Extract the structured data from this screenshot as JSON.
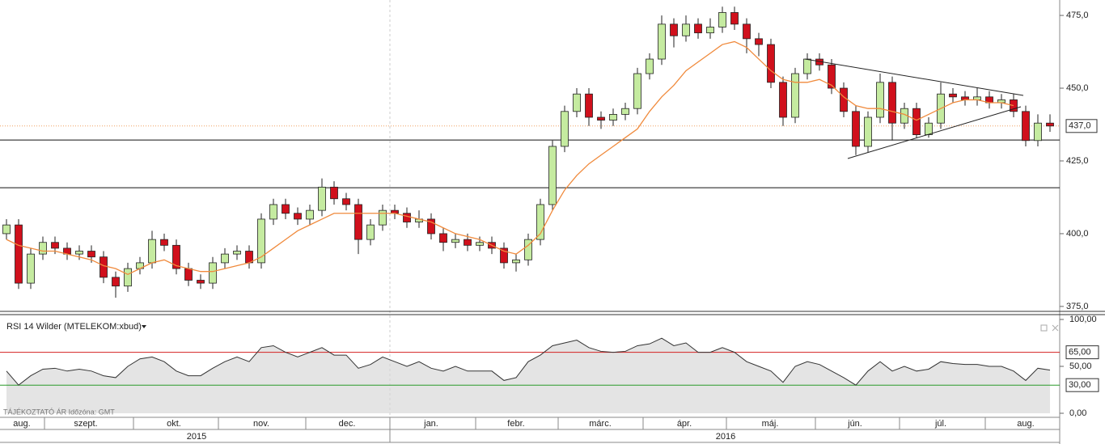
{
  "chart_data": {
    "type": "candlestick",
    "open": [
      400,
      403,
      383,
      393,
      397,
      395,
      393,
      394,
      392,
      385,
      382,
      388,
      390,
      398,
      396,
      388,
      384,
      383,
      390,
      393,
      394,
      390,
      405,
      410,
      407,
      405,
      408,
      416,
      412,
      410,
      398,
      403,
      408,
      407,
      404,
      405,
      400,
      397,
      398,
      396,
      397,
      395,
      390,
      391,
      398,
      410,
      430,
      442,
      448,
      440,
      439,
      441,
      443,
      455,
      460,
      472,
      468,
      472,
      469,
      471,
      476,
      472,
      467,
      465,
      452,
      440,
      455,
      460,
      458,
      450,
      442,
      430,
      440,
      452,
      438,
      443,
      434,
      438,
      448,
      447,
      446,
      447,
      445,
      446,
      442,
      432,
      438
    ],
    "high": [
      405,
      405,
      395,
      399,
      399,
      397,
      396,
      396,
      394,
      387,
      390,
      392,
      401,
      400,
      398,
      390,
      386,
      392,
      395,
      396,
      396,
      407,
      412,
      412,
      409,
      410,
      419,
      418,
      414,
      412,
      405,
      410,
      410,
      409,
      408,
      407,
      402,
      400,
      400,
      399,
      399,
      397,
      393,
      400,
      412,
      432,
      444,
      450,
      450,
      442,
      443,
      445,
      457,
      462,
      475,
      474,
      475,
      474,
      474,
      478,
      478,
      474,
      469,
      467,
      454,
      457,
      462,
      462,
      460,
      452,
      444,
      442,
      455,
      454,
      445,
      445,
      440,
      452,
      450,
      449,
      450,
      449,
      448,
      448,
      444,
      441,
      441
    ],
    "low": [
      398,
      381,
      381,
      391,
      393,
      391,
      391,
      390,
      383,
      378,
      380,
      386,
      388,
      394,
      386,
      382,
      381,
      381,
      388,
      391,
      388,
      388,
      403,
      405,
      403,
      403,
      406,
      410,
      408,
      393,
      396,
      401,
      405,
      402,
      402,
      398,
      394,
      395,
      394,
      394,
      393,
      388,
      387,
      389,
      396,
      408,
      428,
      440,
      437,
      436,
      437,
      439,
      441,
      453,
      458,
      464,
      466,
      467,
      467,
      469,
      470,
      462,
      461,
      450,
      437,
      438,
      453,
      456,
      448,
      440,
      427,
      428,
      438,
      432,
      436,
      433,
      433,
      436,
      445,
      444,
      444,
      443,
      443,
      440,
      430,
      430,
      435
    ],
    "close": [
      403,
      383,
      393,
      397,
      395,
      393,
      394,
      392,
      385,
      382,
      388,
      390,
      398,
      396,
      388,
      384,
      383,
      390,
      393,
      394,
      390,
      405,
      410,
      407,
      405,
      408,
      416,
      412,
      410,
      398,
      403,
      408,
      407,
      404,
      405,
      400,
      397,
      398,
      396,
      397,
      395,
      390,
      391,
      398,
      410,
      430,
      442,
      448,
      440,
      439,
      441,
      443,
      455,
      460,
      472,
      468,
      472,
      469,
      471,
      476,
      472,
      467,
      465,
      452,
      440,
      455,
      460,
      458,
      450,
      442,
      430,
      440,
      452,
      438,
      443,
      434,
      438,
      448,
      447,
      446,
      447,
      445,
      446,
      442,
      432,
      438,
      437
    ],
    "ma": [
      398,
      396,
      395,
      394,
      394,
      393,
      392,
      391,
      389,
      388,
      386,
      388,
      390,
      391,
      389,
      388,
      387,
      387,
      388,
      389,
      390,
      392,
      395,
      398,
      401,
      403,
      405,
      407,
      407,
      407,
      407,
      407,
      407,
      406,
      405,
      404,
      402,
      400,
      399,
      398,
      396,
      394,
      393,
      396,
      400,
      408,
      415,
      420,
      424,
      427,
      430,
      433,
      436,
      442,
      447,
      451,
      456,
      459,
      462,
      465,
      466,
      464,
      460,
      456,
      453,
      452,
      452,
      453,
      451,
      447,
      444,
      443,
      443,
      442,
      441,
      439,
      441,
      443,
      445,
      446,
      446,
      445,
      445,
      444,
      null,
      null,
      null
    ],
    "up_color": "#c5eba0",
    "down_color": "#d0101c",
    "ma_color": "#f08a3c",
    "ylim": [
      373.3,
      480.3
    ],
    "yticks": [
      {
        "value": 375,
        "label": "375,0"
      },
      {
        "value": 400,
        "label": "400,0"
      },
      {
        "value": 425,
        "label": "425,0"
      },
      {
        "value": 450,
        "label": "450,0"
      },
      {
        "value": 475,
        "label": "475,0"
      }
    ],
    "last_price": {
      "value": 437,
      "label": "437,0"
    },
    "levels": [
      432.2,
      415.8
    ],
    "rsi": {
      "title": "RSI 14 Wilder (MTELEKOM:xbud)",
      "values": [
        45,
        30,
        40,
        47,
        48,
        45,
        47,
        45,
        40,
        38,
        50,
        58,
        60,
        55,
        45,
        40,
        40,
        48,
        55,
        60,
        55,
        70,
        72,
        65,
        60,
        65,
        70,
        62,
        62,
        48,
        52,
        60,
        55,
        50,
        55,
        48,
        45,
        50,
        45,
        45,
        45,
        35,
        38,
        55,
        62,
        72,
        75,
        78,
        70,
        66,
        65,
        66,
        72,
        74,
        80,
        72,
        75,
        65,
        65,
        70,
        65,
        55,
        50,
        45,
        33,
        50,
        55,
        52,
        45,
        38,
        30,
        45,
        55,
        45,
        50,
        45,
        47,
        55,
        53,
        52,
        52,
        50,
        50,
        45,
        35,
        48,
        46
      ],
      "ylim": [
        0,
        100
      ],
      "yticks": [
        {
          "value": 0,
          "label": "0,00"
        },
        {
          "value": 50,
          "label": "50,00"
        },
        {
          "value": 100,
          "label": "100,00"
        }
      ],
      "upper": {
        "value": 65,
        "label": "65,00"
      },
      "lower": {
        "value": 30,
        "label": "30,00"
      }
    },
    "footer": "TÁJÉKOZTATÓ ÁR   Időzóna: GMT",
    "months": [
      "aug.",
      "szept.",
      "okt.",
      "nov.",
      "dec.",
      "jan.",
      "febr.",
      "márc.",
      "ápr.",
      "máj.",
      "jún.",
      "júl.",
      "aug."
    ],
    "years": [
      "2015",
      "2016"
    ]
  }
}
